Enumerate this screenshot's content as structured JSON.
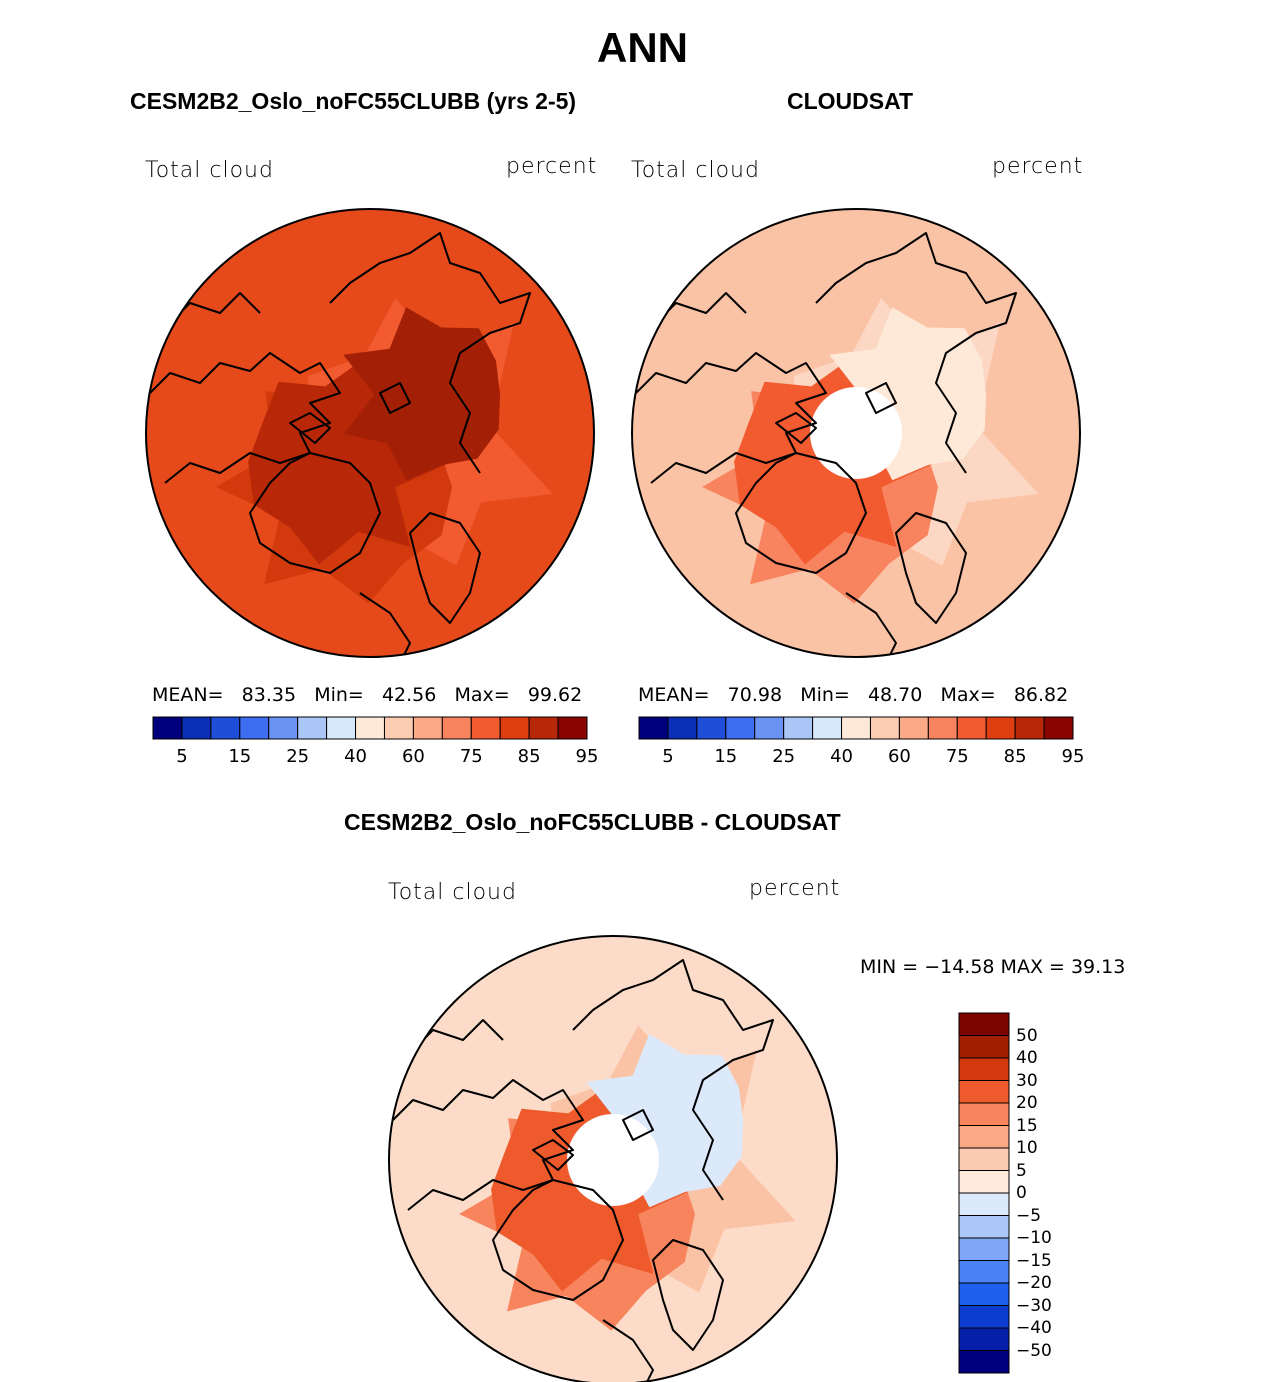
{
  "title": "ANN",
  "panels": [
    {
      "title": "CESM2B2_Oslo_noFC55CLUBB (yrs 2-5)",
      "left_label": "Total cloud",
      "right_label": "percent",
      "stats": {
        "mean_label": "MEAN=",
        "mean": "83.35",
        "min_label": "Min=",
        "min": "42.56",
        "max_label": "Max=",
        "max": "99.62"
      },
      "polar_hole": false
    },
    {
      "title": "CLOUDSAT",
      "left_label": "Total cloud",
      "right_label": "percent",
      "stats": {
        "mean_label": "MEAN=",
        "mean": "70.98",
        "min_label": "Min=",
        "min": "48.70",
        "max_label": "Max=",
        "max": "86.82"
      },
      "polar_hole": true
    }
  ],
  "colorbar_top": {
    "colors": [
      "#00007f",
      "#0a2fb5",
      "#1f4fd8",
      "#3d6df0",
      "#6a93f4",
      "#a9c6f7",
      "#d8e8fb",
      "#fee8d8",
      "#fcccb2",
      "#fbaa87",
      "#f7845f",
      "#f25a30",
      "#df3f10",
      "#b82808",
      "#8b0500"
    ],
    "tick_labels": [
      "5",
      "15",
      "25",
      "40",
      "60",
      "75",
      "85",
      "95"
    ]
  },
  "diff_panel": {
    "title": "CESM2B2_Oslo_noFC55CLUBB - CLOUDSAT",
    "left_label": "Total cloud",
    "right_label": "percent",
    "minmax": "MIN = −14.58 MAX =  39.13",
    "colors": [
      "#00007f",
      "#0420a8",
      "#0d3dd0",
      "#1f5ff0",
      "#4b82f4",
      "#7ea6f6",
      "#adc8f8",
      "#dce9fb",
      "#fee9dc",
      "#fccab0",
      "#fba884",
      "#f7845c",
      "#ee5a2c",
      "#d23a0e",
      "#a31f04",
      "#7d0500"
    ],
    "tick_labels": [
      "50",
      "40",
      "30",
      "20",
      "15",
      "10",
      "5",
      "0",
      "−5",
      "−10",
      "−15",
      "−20",
      "−30",
      "−40",
      "−50"
    ]
  }
}
